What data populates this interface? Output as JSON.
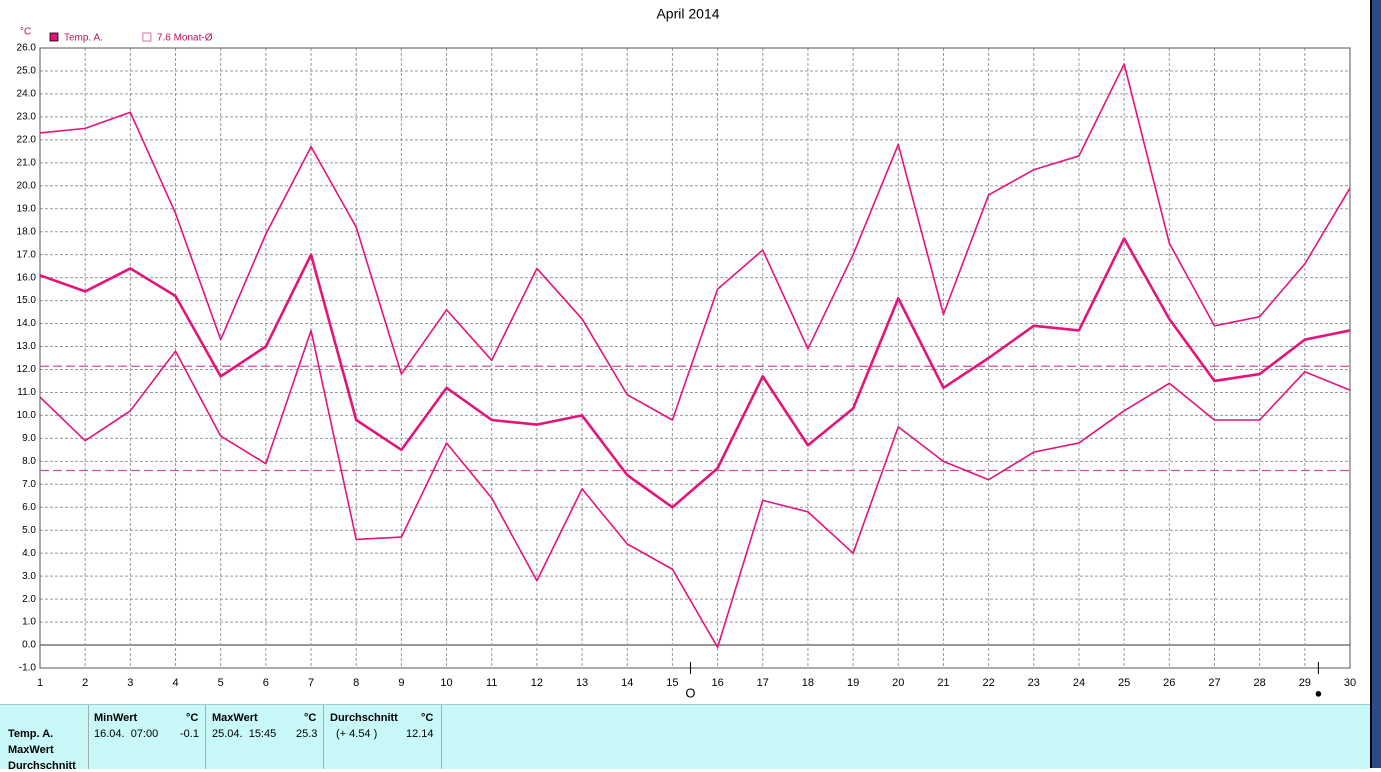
{
  "chart_data": {
    "type": "line",
    "title": "April 2014",
    "y_unit": "°C",
    "x": [
      1,
      2,
      3,
      4,
      5,
      6,
      7,
      8,
      9,
      10,
      11,
      12,
      13,
      14,
      15,
      16,
      17,
      18,
      19,
      20,
      21,
      22,
      23,
      24,
      25,
      26,
      27,
      28,
      29,
      30
    ],
    "xlim": [
      1,
      30
    ],
    "xticks": [
      1,
      2,
      3,
      4,
      5,
      6,
      7,
      8,
      9,
      10,
      11,
      12,
      13,
      14,
      15,
      16,
      17,
      18,
      19,
      20,
      21,
      22,
      23,
      24,
      25,
      26,
      27,
      28,
      29,
      30
    ],
    "ylim": [
      -1,
      26
    ],
    "yticks": [
      {
        "value": -1,
        "label": "-1.0"
      },
      {
        "value": 0,
        "label": "0.0"
      },
      {
        "value": 1,
        "label": "1.0"
      },
      {
        "value": 2,
        "label": "2.0"
      },
      {
        "value": 3,
        "label": "3.0"
      },
      {
        "value": 4,
        "label": "4.0"
      },
      {
        "value": 5,
        "label": "5.0"
      },
      {
        "value": 6,
        "label": "6.0"
      },
      {
        "value": 7,
        "label": "7.0"
      },
      {
        "value": 8,
        "label": "8.0"
      },
      {
        "value": 9,
        "label": "9.0"
      },
      {
        "value": 10,
        "label": "10.0"
      },
      {
        "value": 11,
        "label": "11.0"
      },
      {
        "value": 12,
        "label": "12.0"
      },
      {
        "value": 13,
        "label": "13.0"
      },
      {
        "value": 14,
        "label": "14.0"
      },
      {
        "value": 15,
        "label": "15.0"
      },
      {
        "value": 16,
        "label": "16.0"
      },
      {
        "value": 17,
        "label": "17.0"
      },
      {
        "value": 18,
        "label": "18.0"
      },
      {
        "value": 19,
        "label": "19.0"
      },
      {
        "value": 20,
        "label": "20.0"
      },
      {
        "value": 21,
        "label": "21.0"
      },
      {
        "value": 22,
        "label": "22.0"
      },
      {
        "value": 23,
        "label": "23.0"
      },
      {
        "value": 24,
        "label": "24.0"
      },
      {
        "value": 25,
        "label": "25.0"
      },
      {
        "value": 26,
        "label": "26.0"
      }
    ],
    "grid": true,
    "legend": "top-left",
    "series": [
      {
        "name": "Temp. A.",
        "color": "#e3157a",
        "width": 2.6,
        "values": [
          16.1,
          15.4,
          16.4,
          15.2,
          11.7,
          13.0,
          17.0,
          9.8,
          8.5,
          11.2,
          9.8,
          9.6,
          10.0,
          7.4,
          6.0,
          7.7,
          11.7,
          8.7,
          10.3,
          15.1,
          11.2,
          12.5,
          13.9,
          13.7,
          17.7,
          14.2,
          11.5,
          11.8,
          13.3,
          13.7
        ]
      },
      {
        "color": "#e3157a",
        "width": 1.6,
        "values": [
          22.3,
          22.5,
          23.2,
          18.8,
          13.3,
          17.9,
          21.7,
          18.2,
          11.8,
          14.6,
          12.4,
          16.4,
          14.2,
          10.9,
          9.8,
          15.5,
          17.2,
          12.9,
          17.0,
          21.8,
          14.4,
          19.6,
          20.7,
          21.3,
          25.3,
          17.5,
          13.9,
          14.3,
          16.6,
          19.9
        ]
      },
      {
        "color": "#e3157a",
        "width": 1.6,
        "values": [
          10.8,
          8.9,
          10.2,
          12.8,
          9.1,
          7.9,
          13.7,
          4.6,
          4.7,
          8.8,
          6.4,
          2.8,
          6.8,
          4.4,
          3.3,
          -0.1,
          6.3,
          5.8,
          4.0,
          9.5,
          8.0,
          7.2,
          8.4,
          8.8,
          10.2,
          11.4,
          9.8,
          9.8,
          11.9,
          11.1
        ]
      }
    ],
    "reference_lines": [
      {
        "value": 12.14,
        "color": "#d0509a"
      },
      {
        "value": 7.6,
        "color": "#d0509a",
        "label": "7.6 Monat-Ø"
      }
    ],
    "moon_phases": [
      {
        "x": 15.4,
        "label": "O"
      },
      {
        "x": 29.3,
        "label": "●"
      }
    ]
  },
  "table": {
    "row_labels": [
      "Temp. A.",
      "MaxWert",
      "Durchschnitt"
    ],
    "columns": [
      {
        "title": "MinWert",
        "unit": "°C",
        "cells": [
          "16.04.  07:00",
          "-0.1"
        ]
      },
      {
        "title": "MaxWert",
        "unit": "°C",
        "cells": [
          "25.04.  15:45",
          "25.3"
        ]
      },
      {
        "title": "Durchschnitt",
        "unit": "°C",
        "cells": [
          "(+ 4.54 )",
          "12.14"
        ]
      }
    ]
  }
}
